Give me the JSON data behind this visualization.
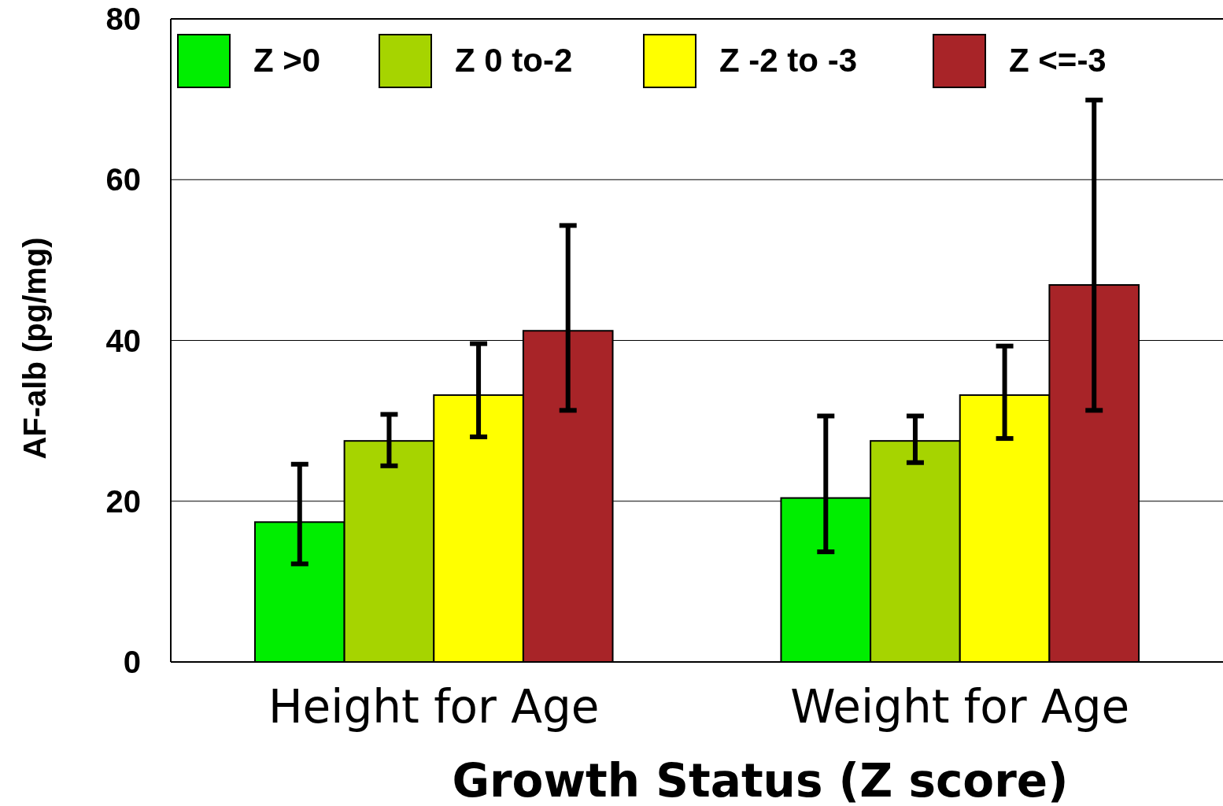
{
  "chart_data": {
    "type": "bar",
    "xlabel": "Growth Status (Z score)",
    "ylabel": "AF-alb (pg/mg)",
    "categories": [
      "Height for Age",
      "Weight for Age"
    ],
    "series": [
      {
        "name": "Z >0",
        "color": "#00ee00",
        "values": [
          17.4,
          20.4
        ],
        "errors": [
          [
            12.2,
            24.6
          ],
          [
            13.7,
            30.6
          ]
        ]
      },
      {
        "name": "Z 0 to-2",
        "color": "#a6d400",
        "values": [
          27.5,
          27.5
        ],
        "errors": [
          [
            24.4,
            30.8
          ],
          [
            24.8,
            30.6
          ]
        ]
      },
      {
        "name": "Z -2 to -3",
        "color": "#ffff00",
        "values": [
          33.2,
          33.2
        ],
        "errors": [
          [
            28.0,
            39.6
          ],
          [
            27.8,
            39.3
          ]
        ]
      },
      {
        "name": "Z <=-3",
        "color": "#a82428",
        "values": [
          41.2,
          46.9
        ],
        "errors": [
          [
            31.3,
            54.3
          ],
          [
            31.3,
            69.9
          ]
        ]
      }
    ],
    "ylim": [
      0,
      80
    ],
    "yticks": [
      0,
      20,
      40,
      60,
      80
    ],
    "grid": "y",
    "legend": "top"
  }
}
